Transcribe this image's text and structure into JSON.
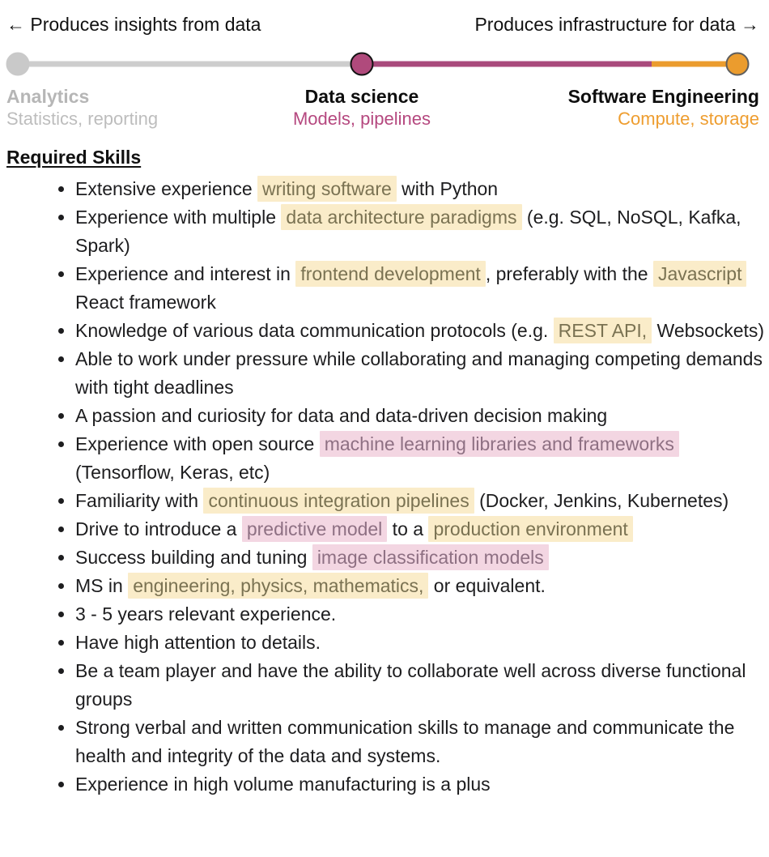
{
  "spectrum": {
    "left_caption": "← Produces insights from data",
    "right_caption": "Produces infrastructure for data →",
    "track_segments": [
      {
        "from_pct": 1.5,
        "to_pct": 47.2,
        "color": "#cdcdcd"
      },
      {
        "from_pct": 47.2,
        "to_pct": 85.7,
        "color": "#a94a7c"
      },
      {
        "from_pct": 85.7,
        "to_pct": 97.1,
        "color": "#eb9c2e"
      }
    ],
    "stops": [
      {
        "id": "analytics",
        "label": "Analytics",
        "sublabel": "Statistics, reporting",
        "position_pct": 1.5,
        "knob_fill": "#c9c9c9",
        "knob_border": "#c9c9c9",
        "label_color": "#b6b6b6",
        "sublabel_color": "#bdbdbd",
        "align": "left"
      },
      {
        "id": "data-science",
        "label": "Data science",
        "sublabel": "Models, pipelines",
        "position_pct": 47.2,
        "knob_fill": "#b04a7c",
        "knob_border": "#121212",
        "label_color": "#0e0e0e",
        "sublabel_color": "#b5487f",
        "align": "center"
      },
      {
        "id": "software-engineering",
        "label": "Software Engineering",
        "sublabel": "Compute, storage",
        "position_pct": 97.1,
        "knob_fill": "#eb9c2e",
        "knob_border": "#5e5e5e",
        "label_color": "#0e0e0e",
        "sublabel_color": "#ee9d2f",
        "align": "right"
      }
    ]
  },
  "highlights": {
    "yellow": {
      "bg": "#faecc9",
      "text": "#7a7252"
    },
    "pink": {
      "bg": "#f3d6e2",
      "text": "#8e7083"
    }
  },
  "skills": {
    "heading": "Required Skills",
    "items": [
      {
        "segments": [
          {
            "t": "Extensive experience ",
            "h": ""
          },
          {
            "t": "writing software",
            "h": "y"
          },
          {
            "t": " with Python",
            "h": ""
          }
        ]
      },
      {
        "segments": [
          {
            "t": "Experience with multiple ",
            "h": ""
          },
          {
            "t": "data architecture paradigms",
            "h": "y"
          },
          {
            "t": " (e.g. SQL, NoSQL, Kafka, Spark)",
            "h": ""
          }
        ]
      },
      {
        "segments": [
          {
            "t": "Experience and interest in ",
            "h": ""
          },
          {
            "t": "frontend development",
            "h": "y"
          },
          {
            "t": ", preferably with the ",
            "h": ""
          },
          {
            "t": "Javascript",
            "h": "y"
          },
          {
            "t": " React framework",
            "h": ""
          }
        ]
      },
      {
        "segments": [
          {
            "t": "Knowledge of various data communication protocols (e.g. ",
            "h": ""
          },
          {
            "t": "REST API,",
            "h": "y"
          },
          {
            "t": " Websockets)",
            "h": ""
          }
        ]
      },
      {
        "segments": [
          {
            "t": "Able to work under pressure while collaborating and managing competing demands with tight deadlines",
            "h": ""
          }
        ]
      },
      {
        "segments": [
          {
            "t": "A passion and curiosity for data and data-driven decision making",
            "h": ""
          }
        ]
      },
      {
        "segments": [
          {
            "t": "Experience with open source ",
            "h": ""
          },
          {
            "t": "machine learning libraries and frameworks",
            "h": "p"
          },
          {
            "t": " (Tensorflow, Keras, etc)",
            "h": ""
          }
        ]
      },
      {
        "segments": [
          {
            "t": "Familiarity with ",
            "h": ""
          },
          {
            "t": "continuous integration pipelines",
            "h": "y"
          },
          {
            "t": " (Docker, Jenkins, Kubernetes)",
            "h": ""
          }
        ]
      },
      {
        "segments": [
          {
            "t": "Drive to introduce a ",
            "h": ""
          },
          {
            "t": "predictive model",
            "h": "p"
          },
          {
            "t": " to a ",
            "h": ""
          },
          {
            "t": "production environment",
            "h": "y"
          }
        ]
      },
      {
        "segments": [
          {
            "t": "Success building and tuning ",
            "h": ""
          },
          {
            "t": "image classification models",
            "h": "p"
          }
        ]
      },
      {
        "segments": [
          {
            "t": "MS in ",
            "h": ""
          },
          {
            "t": "engineering, physics, mathematics,",
            "h": "y"
          },
          {
            "t": " or equivalent.",
            "h": ""
          }
        ]
      },
      {
        "segments": [
          {
            "t": "3 - 5 years relevant experience.",
            "h": ""
          }
        ]
      },
      {
        "segments": [
          {
            "t": "Have high attention to details.",
            "h": ""
          }
        ]
      },
      {
        "segments": [
          {
            "t": "Be a team player and have the ability to collaborate well across diverse functional groups",
            "h": ""
          }
        ]
      },
      {
        "segments": [
          {
            "t": "Strong verbal and written communication skills to manage and communicate the health and integrity of the data and systems.",
            "h": ""
          }
        ]
      },
      {
        "segments": [
          {
            "t": "Experience in high volume manufacturing is a plus",
            "h": ""
          }
        ]
      }
    ]
  }
}
